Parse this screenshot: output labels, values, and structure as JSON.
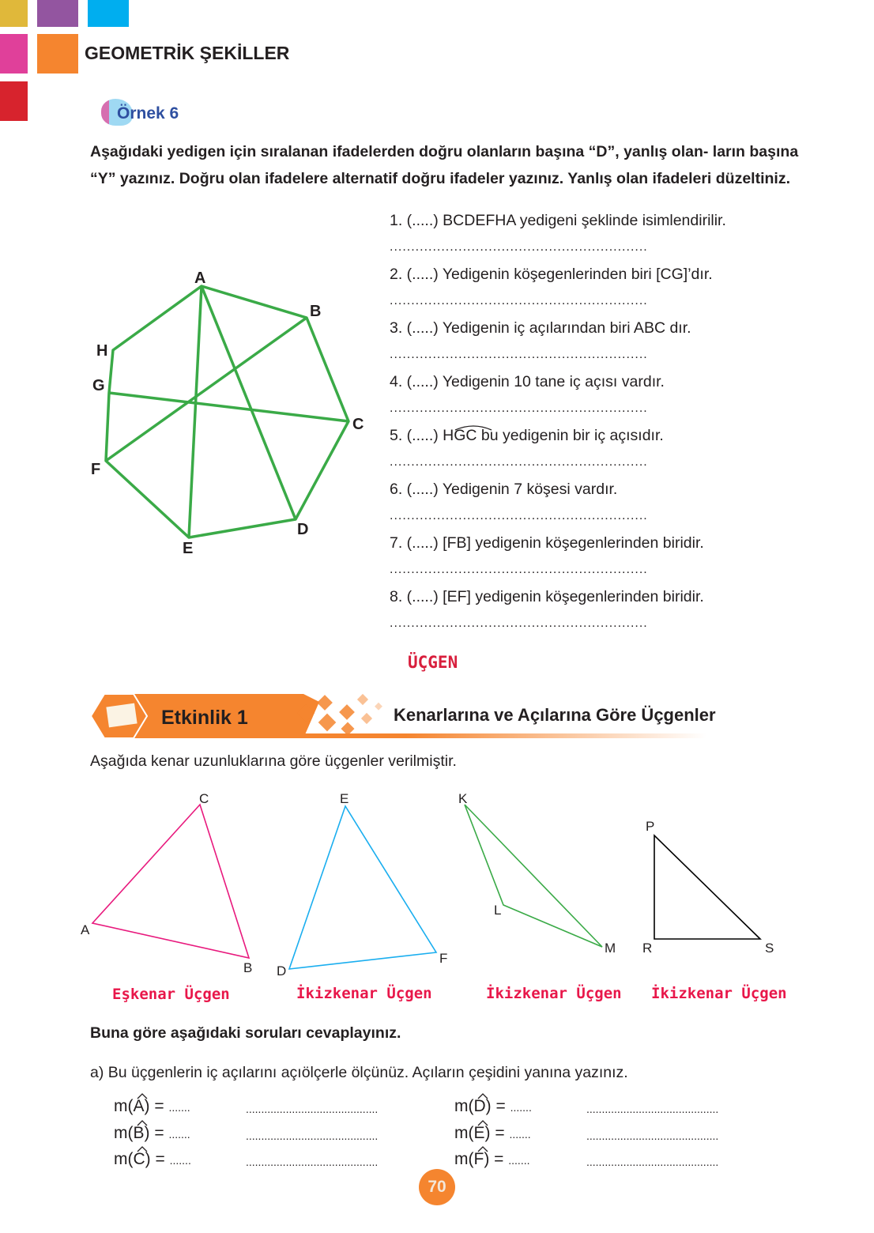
{
  "header": {
    "title": "GEOMETRİK ŞEKİLLER",
    "colors": [
      "#e0b83a",
      "#9355a0",
      "#00aeef",
      "#e0409a",
      "#f5852f",
      "#d7232d"
    ]
  },
  "example": {
    "label": "Örnek 6",
    "instructions": "Aşağıdaki yedigen için sıralanan ifadelerden doğru olanların başına “D”, yanlış olan- ların başına “Y” yazınız. Doğru olan ifadelere alternatif doğru ifadeler yazınız. Yanlış olan ifadeleri düzeltiniz."
  },
  "heptagon": {
    "vertices": [
      "A",
      "B",
      "C",
      "D",
      "E",
      "F",
      "G",
      "H"
    ],
    "color": "#3aaa47"
  },
  "statements": [
    "1. (.....) BCDEFHA yedigeni şeklinde isimlendirilir.",
    "2. (.....) Yedigenin köşegenlerinden biri [CG]’dır.",
    "3. (.....) Yedigenin iç açılarından biri  ABC dır.",
    "4. (.....) Yedigenin 10 tane iç açısı vardır.",
    "5. (.....)  HGC  bu yedigenin bir iç açısıdır.",
    "6. (.....) Yedigenin 7 köşesi vardır.",
    "7. (.....) [FB] yedigenin köşegenlerinden biridir.",
    "8. (.....) [EF] yedigenin köşegenlerinden biridir."
  ],
  "answer_dots": "............................................................",
  "section_heading": "ÜÇGEN",
  "activity": {
    "label": "Etkinlik 1",
    "title": "Kenarlarına ve Açılarına Göre Üçgenler",
    "intro": "Aşağıda kenar uzunluklarına göre üçgenler verilmiştir."
  },
  "triangles": [
    {
      "vertices": [
        "A",
        "B",
        "C"
      ],
      "color": "#e8197d",
      "answer": "Eşkenar Üçgen"
    },
    {
      "vertices": [
        "D",
        "E",
        "F"
      ],
      "color": "#1aaeef",
      "answer": "İkizkenar Üçgen"
    },
    {
      "vertices": [
        "K",
        "L",
        "M"
      ],
      "color": "#3aaa47",
      "answer": "İkizkenar Üçgen"
    },
    {
      "vertices": [
        "P",
        "R",
        "S"
      ],
      "color": "#000000",
      "answer": "İkizkenar Üçgen"
    }
  ],
  "questions": {
    "heading": "Buna göre aşağıdaki soruları cevaplayınız.",
    "a": "a) Bu üçgenlerin iç açılarını açıölçerle ölçünüz. Açıların çeşidini yanına yazınız."
  },
  "angles": [
    "A",
    "B",
    "C",
    "D",
    "E",
    "F"
  ],
  "angle_blank": ".......",
  "type_blank": "...........................................",
  "page_number": "70"
}
